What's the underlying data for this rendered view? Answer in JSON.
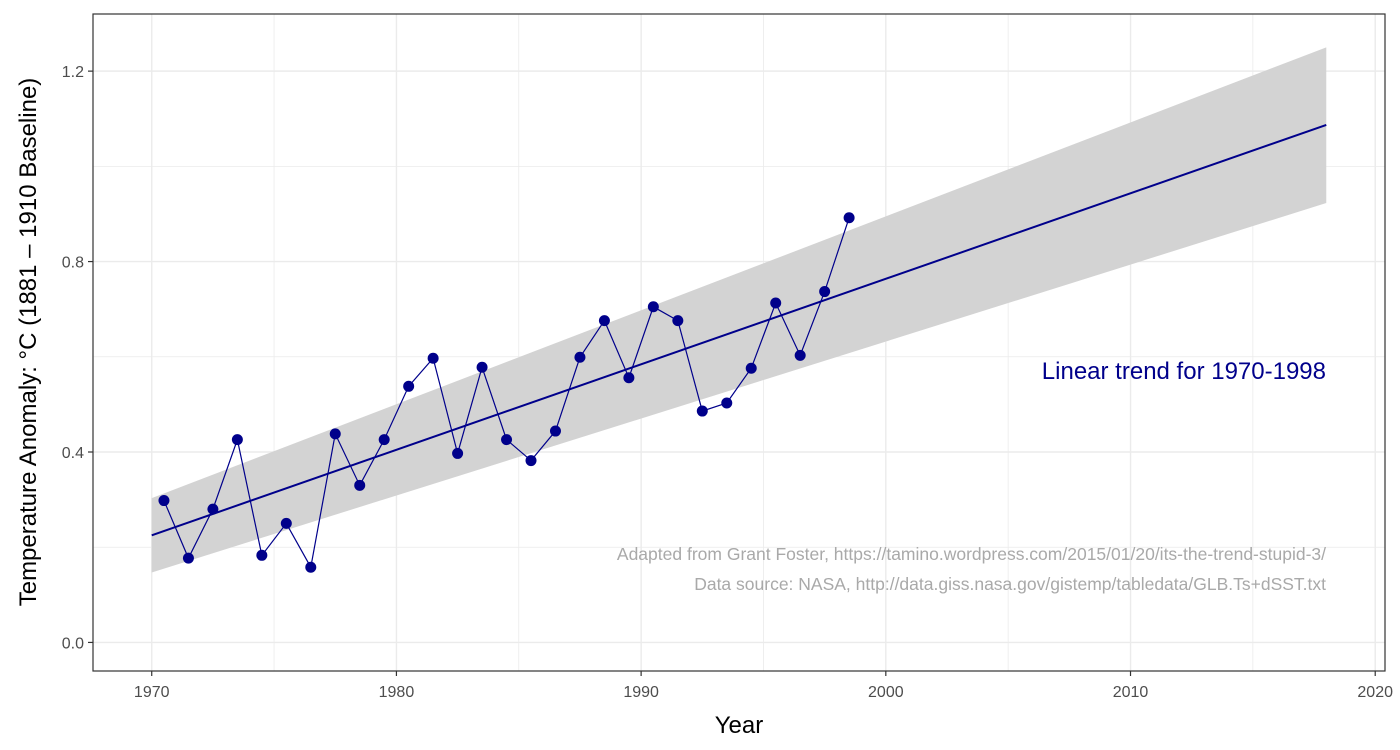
{
  "chart_data": {
    "type": "line",
    "xlabel": "Year",
    "ylabel": "Temperature Anomaly: °C   (1881 – 1910 Baseline)",
    "xlim": [
      1967.6,
      2020.4
    ],
    "ylim": [
      -0.06,
      1.32
    ],
    "x_ticks": [
      1970,
      1980,
      1990,
      2000,
      2010,
      2020
    ],
    "y_ticks": [
      0.0,
      0.4,
      0.8,
      1.2
    ],
    "x_tick_labels": [
      "1970",
      "1980",
      "1990",
      "2000",
      "2010",
      "2020"
    ],
    "y_tick_labels": [
      "0.0",
      "0.4",
      "0.8",
      "1.2"
    ],
    "grid": true,
    "series": [
      {
        "x": [
          1970.5,
          1971.5,
          1972.5,
          1973.5,
          1974.5,
          1975.5,
          1976.5,
          1977.5,
          1978.5,
          1979.5,
          1980.5,
          1981.5,
          1982.5,
          1983.5,
          1984.5,
          1985.5,
          1986.5,
          1987.5,
          1988.5,
          1989.5,
          1990.5,
          1991.5,
          1992.5,
          1993.5,
          1994.5,
          1995.5,
          1996.5,
          1997.5,
          1998.5
        ],
        "y": [
          0.298,
          0.177,
          0.28,
          0.426,
          0.183,
          0.25,
          0.158,
          0.438,
          0.33,
          0.426,
          0.538,
          0.597,
          0.397,
          0.578,
          0.426,
          0.382,
          0.444,
          0.599,
          0.676,
          0.556,
          0.705,
          0.676,
          0.486,
          0.503,
          0.576,
          0.713,
          0.603,
          0.737,
          0.892
        ],
        "color": "#00008b"
      }
    ],
    "trend": {
      "x": [
        1970,
        2018
      ],
      "y": [
        0.225,
        1.087
      ],
      "lower": [
        0.147,
        0.923
      ],
      "upper": [
        0.303,
        1.25
      ],
      "color": "#00008b",
      "band_color": "#d3d3d3"
    },
    "annotations": {
      "trend_label": "Linear trend for 1970-1998",
      "source_line1": "Adapted from Grant Foster, https://tamino.wordpress.com/2015/01/20/its-the-trend-stupid-3/",
      "source_line2": "Data source: NASA, http://data.giss.nasa.gov/gistemp/tabledata/GLB.Ts+dSST.txt"
    },
    "colors": {
      "series": "#00008b",
      "band": "#d3d3d3",
      "grid": "#ebebeb",
      "source_text": "#a9a9a9"
    }
  }
}
